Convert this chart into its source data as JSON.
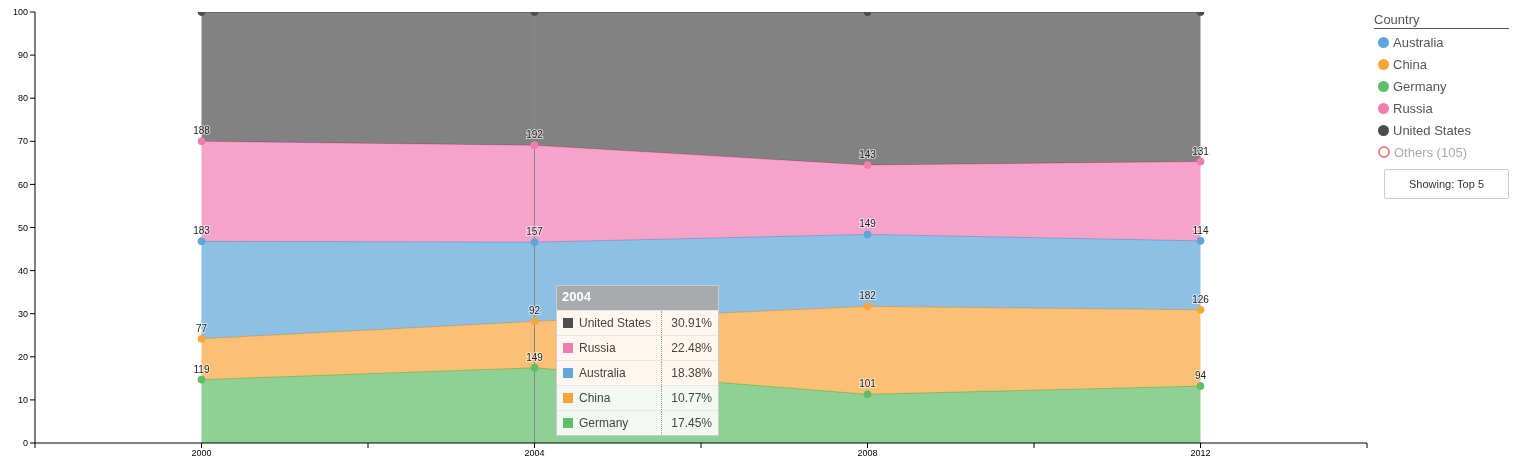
{
  "chart_data": {
    "type": "area",
    "stacked": true,
    "x": [
      2000,
      2004,
      2008,
      2012
    ],
    "xlim": [
      1998,
      2014
    ],
    "xticks": [
      {
        "value": 1998,
        "label": null
      },
      2000,
      {
        "value": 2002,
        "label": null
      },
      2004,
      {
        "value": 2006,
        "label": null
      },
      2008,
      {
        "value": 2010,
        "label": null
      },
      2012,
      {
        "value": 2014,
        "label": null
      }
    ],
    "ylim": [
      0,
      100
    ],
    "yticks": [
      0,
      10,
      20,
      30,
      40,
      50,
      60,
      70,
      80,
      90,
      100
    ],
    "marker": "circle",
    "legend": "top right",
    "legend_title": "Country",
    "series": [
      {
        "name": "Germany",
        "color": "#60bd68",
        "values": [
          14.7,
          17.45,
          11.3,
          13.2
        ]
      },
      {
        "name": "China",
        "color": "#faa43a",
        "values": [
          9.5,
          10.77,
          20.4,
          17.7
        ]
      },
      {
        "name": "Australia",
        "color": "#5da5da",
        "values": [
          22.6,
          18.38,
          16.7,
          16.0
        ]
      },
      {
        "name": "Russia",
        "color": "#f17cb0",
        "values": [
          23.2,
          22.48,
          16.1,
          18.4
        ]
      },
      {
        "name": "United States",
        "color": "#4d4d4d",
        "values": [
          30.0,
          30.91,
          35.5,
          34.7
        ]
      }
    ],
    "ref_lines": [
      {
        "axis": "x",
        "value": 2004,
        "color": "#888888"
      }
    ],
    "annotations": [
      "2004",
      "United States",
      "30.91%",
      "Russia",
      "22.48%",
      "Australia",
      "18.38%",
      "China",
      "10.77%",
      "Germany",
      "17.45%",
      "Others (105)",
      "Showing: Top 5",
      {
        "text": "119",
        "x": 2000,
        "y": 14.7
      },
      {
        "text": "149",
        "x": 2004,
        "y": 17.5
      },
      {
        "text": "101",
        "x": 2008,
        "y": 11.3
      },
      {
        "text": "94",
        "x": 2012,
        "y": 13.2
      },
      {
        "text": "77",
        "x": 2000,
        "y": 24.2
      },
      {
        "text": "92",
        "x": 2004,
        "y": 28.2
      },
      {
        "text": "182",
        "x": 2008,
        "y": 31.7
      },
      {
        "text": "126",
        "x": 2012,
        "y": 30.9
      },
      {
        "text": "183",
        "x": 2000,
        "y": 46.8
      },
      {
        "text": "157",
        "x": 2004,
        "y": 46.6
      },
      {
        "text": "149",
        "x": 2008,
        "y": 48.4
      },
      {
        "text": "114",
        "x": 2012,
        "y": 46.9
      },
      {
        "text": "188",
        "x": 2000,
        "y": 70.0
      },
      {
        "text": "192",
        "x": 2004,
        "y": 69.1
      },
      {
        "text": "143",
        "x": 2008,
        "y": 64.5
      },
      {
        "text": "131",
        "x": 2012,
        "y": 65.3
      }
    ]
  }
}
